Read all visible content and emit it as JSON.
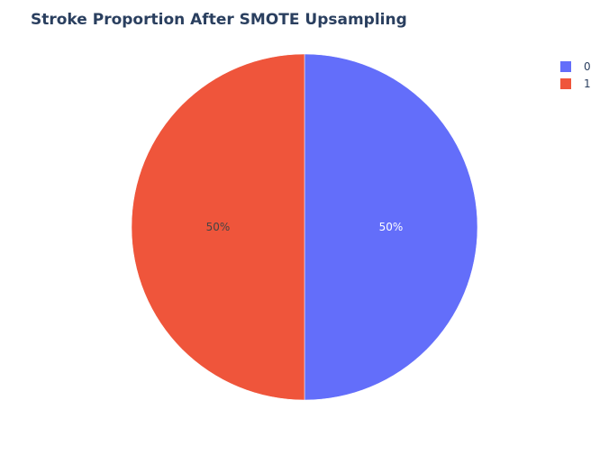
{
  "chart_data": {
    "type": "pie",
    "title": "Stroke Proportion After SMOTE Upsampling",
    "categories": [
      "0",
      "1"
    ],
    "values": [
      50,
      50
    ],
    "slice_labels": [
      "50%",
      "50%"
    ],
    "colors": [
      "#636efa",
      "#ef553b"
    ],
    "label_colors": [
      "#ffffff",
      "#444444"
    ],
    "legend": {
      "placement": "top-right",
      "entries": [
        "0",
        "1"
      ]
    }
  }
}
